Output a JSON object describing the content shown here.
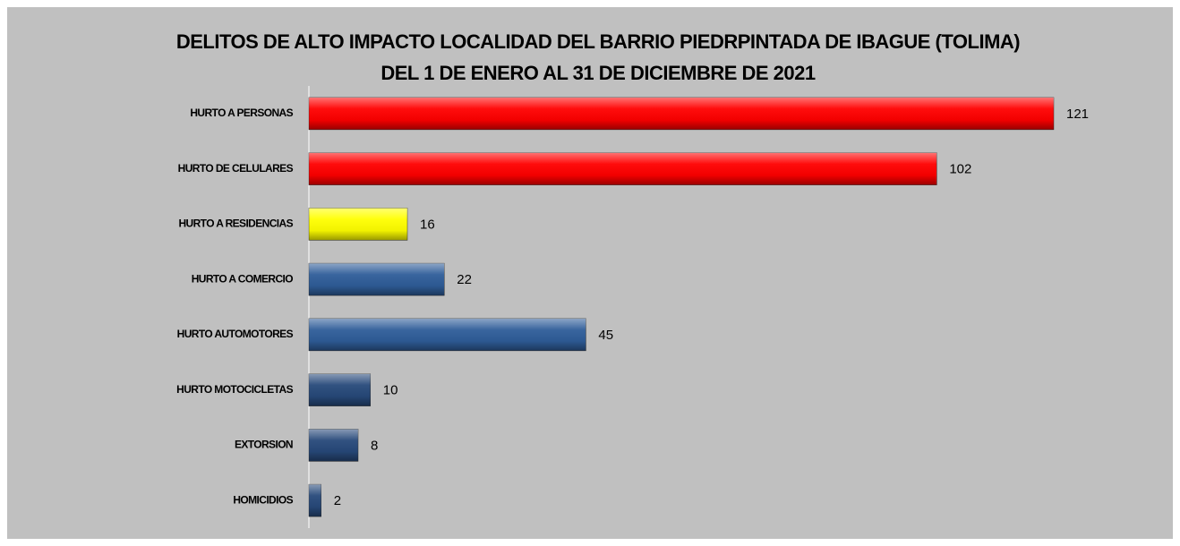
{
  "chart_data": {
    "type": "barh",
    "title": "DELITOS DE ALTO  IMPACTO  LOCALIDAD  DEL BARRIO PIEDRPINTADA  DE IBAGUE  (TOLIMA)",
    "subtitle": "DEL 1 DE ENERO  AL  31 DE DICIEMBRE  DE 2021",
    "categories": [
      "HURTO A PERSONAS",
      "HURTO DE CELULARES",
      "HURTO A RESIDENCIAS",
      "HURTO A COMERCIO",
      "HURTO AUTOMOTORES",
      "HURTO MOTOCICLETAS",
      "EXTORSION",
      "HOMICIDIOS"
    ],
    "values": [
      121,
      102,
      16,
      22,
      45,
      10,
      8,
      2
    ],
    "colors": [
      "#ff0000",
      "#ff0000",
      "#ffff00",
      "#2f5d99",
      "#2f5d99",
      "#27497a",
      "#27497a",
      "#27497a"
    ],
    "xlim": [
      0,
      130
    ]
  }
}
